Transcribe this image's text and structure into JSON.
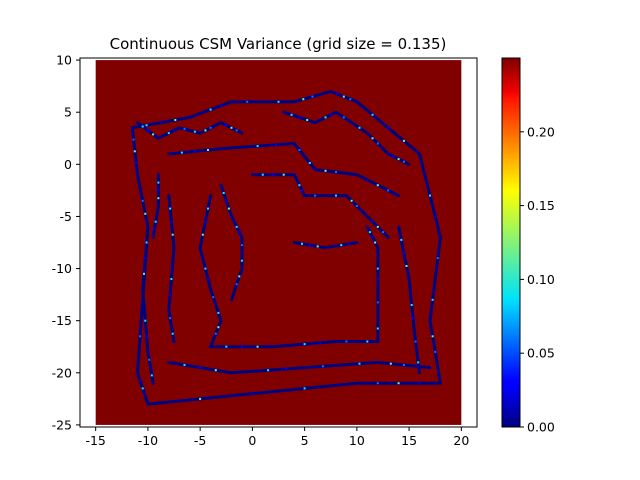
{
  "chart_data": {
    "type": "heatmap",
    "title": "Continuous CSM Variance (grid size = 0.135)",
    "xlabel": "",
    "ylabel": "",
    "xlim": [
      -16.5,
      21.5
    ],
    "ylim": [
      -25.2,
      10.2
    ],
    "x_ticks": [
      -15,
      -10,
      -5,
      0,
      5,
      10,
      15,
      20
    ],
    "y_ticks": [
      10,
      5,
      0,
      -5,
      -10,
      -15,
      -20,
      -25
    ],
    "colormap": "jet",
    "colorbar": {
      "ticks": [
        0.0,
        0.05,
        0.1,
        0.15,
        0.2
      ],
      "tick_labels": [
        "0.00",
        "0.05",
        "0.10",
        "0.15",
        "0.20"
      ],
      "range": [
        0.0,
        0.25
      ]
    },
    "grid_extent": {
      "x": [
        -15,
        20
      ],
      "y": [
        -25,
        10
      ]
    },
    "grid_size": 0.135,
    "background_value": 0.25,
    "low_variance_value": 0.0,
    "low_variance_structures": [
      {
        "name": "outer-boundary",
        "points": [
          [
            -11.5,
            3.5
          ],
          [
            -6,
            4.5
          ],
          [
            -2,
            6
          ],
          [
            4,
            6
          ],
          [
            7.5,
            7
          ],
          [
            10,
            6
          ],
          [
            16,
            1
          ],
          [
            18,
            -7
          ],
          [
            17,
            -15
          ],
          [
            18,
            -21
          ],
          [
            10,
            -21
          ],
          [
            -10,
            -23
          ],
          [
            -11,
            -20
          ],
          [
            -10,
            -6
          ],
          [
            -11,
            -1
          ],
          [
            -11.5,
            3.5
          ]
        ]
      },
      {
        "name": "top-corridor-inner",
        "points": [
          [
            -8,
            1
          ],
          [
            -3,
            1.5
          ],
          [
            4,
            2
          ],
          [
            6,
            -0.5
          ],
          [
            10,
            -1
          ],
          [
            14,
            -3
          ]
        ]
      },
      {
        "name": "inner-room-top",
        "points": [
          [
            0,
            -1
          ],
          [
            4,
            -1
          ],
          [
            5,
            -3
          ],
          [
            9,
            -3
          ],
          [
            11,
            -5
          ],
          [
            13,
            -7
          ]
        ]
      },
      {
        "name": "inner-room-right",
        "points": [
          [
            11,
            -6
          ],
          [
            12,
            -8
          ],
          [
            12,
            -12
          ],
          [
            12,
            -17
          ]
        ]
      },
      {
        "name": "inner-room-bottom",
        "points": [
          [
            -4,
            -17.5
          ],
          [
            2,
            -17.5
          ],
          [
            8,
            -17
          ],
          [
            12,
            -17
          ]
        ]
      },
      {
        "name": "inner-room-left",
        "points": [
          [
            -4,
            -3
          ],
          [
            -5,
            -8
          ],
          [
            -4,
            -12
          ],
          [
            -3,
            -15
          ],
          [
            -4,
            -17.5
          ]
        ]
      },
      {
        "name": "left-wall-inner",
        "points": [
          [
            -8,
            -3
          ],
          [
            -7.5,
            -8
          ],
          [
            -8,
            -14
          ],
          [
            -7.5,
            -17
          ]
        ]
      },
      {
        "name": "left-wall-outer",
        "points": [
          [
            -10,
            -6
          ],
          [
            -10.5,
            -12
          ],
          [
            -10,
            -18
          ],
          [
            -9.5,
            -21
          ]
        ]
      },
      {
        "name": "room-divider",
        "points": [
          [
            4,
            -7.5
          ],
          [
            7,
            -8
          ],
          [
            10,
            -7.5
          ]
        ]
      },
      {
        "name": "right-wall-inner",
        "points": [
          [
            14,
            -6
          ],
          [
            15,
            -11
          ],
          [
            15.5,
            -16
          ],
          [
            16,
            -20
          ]
        ]
      },
      {
        "name": "bottom-corridor",
        "points": [
          [
            -8,
            -19
          ],
          [
            -2,
            -20
          ],
          [
            5,
            -19.5
          ],
          [
            12,
            -19
          ],
          [
            17,
            -19.5
          ]
        ]
      },
      {
        "name": "top-left-cluster",
        "points": [
          [
            -11,
            4
          ],
          [
            -9,
            2.5
          ],
          [
            -7,
            3.5
          ],
          [
            -5,
            3
          ],
          [
            -3,
            4
          ],
          [
            -1,
            3
          ]
        ]
      },
      {
        "name": "top-right-cluster",
        "points": [
          [
            3,
            5
          ],
          [
            6,
            4
          ],
          [
            8,
            5
          ],
          [
            11,
            3
          ],
          [
            13,
            1
          ],
          [
            15,
            0
          ]
        ]
      },
      {
        "name": "left-column",
        "points": [
          [
            -9,
            -1
          ],
          [
            -9,
            -4
          ],
          [
            -9.5,
            -7
          ]
        ]
      },
      {
        "name": "center-left-room",
        "points": [
          [
            -3,
            -2
          ],
          [
            -2,
            -5
          ],
          [
            -1,
            -7
          ],
          [
            -1,
            -10
          ],
          [
            -2,
            -13
          ]
        ]
      }
    ]
  }
}
